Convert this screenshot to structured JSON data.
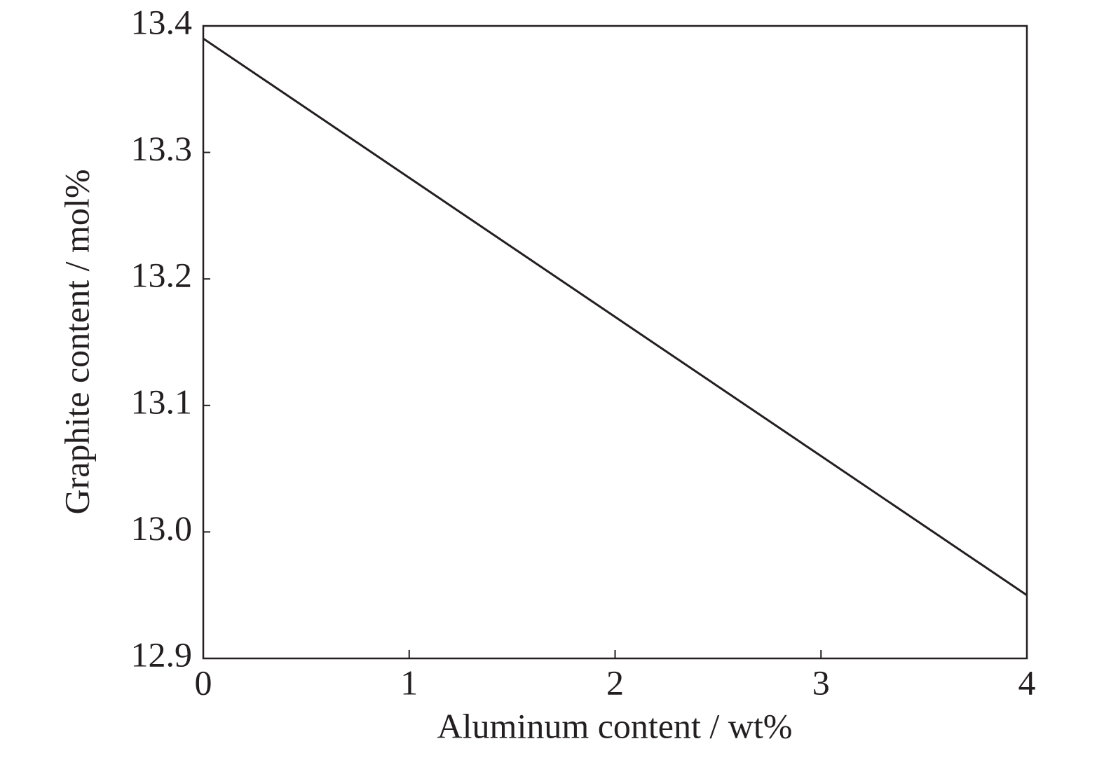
{
  "chart_data": {
    "type": "line",
    "x_label": "Aluminum content / wt%",
    "y_label": "Graphite content / mol%",
    "x": [
      0,
      1,
      2,
      3,
      4
    ],
    "series": [
      {
        "color": "#231f20",
        "values": [
          13.39,
          13.28,
          13.17,
          13.06,
          12.95
        ]
      }
    ],
    "xlim": [
      0,
      4
    ],
    "xticks": [
      0,
      1,
      2,
      3,
      4
    ],
    "ylim": [
      12.9,
      13.4
    ],
    "yticks": [
      12.9,
      {
        "value": 13,
        "label": "13.0"
      },
      13.1,
      13.2,
      13.3,
      13.4
    ]
  }
}
